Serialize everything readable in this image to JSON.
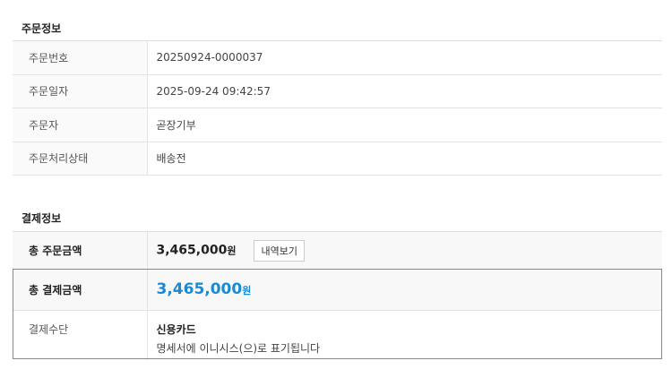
{
  "order_info": {
    "title": "주문정보",
    "rows": [
      {
        "label": "주문번호",
        "value": "20250924-0000037"
      },
      {
        "label": "주문일자",
        "value": "2025-09-24 09:42:57"
      },
      {
        "label": "주문자",
        "value": "곧장기부"
      },
      {
        "label": "주문처리상태",
        "value": "배송전"
      }
    ]
  },
  "payment_info": {
    "title": "결제정보",
    "total_order": {
      "label": "총 주문금액",
      "amount": "3,465,000",
      "unit": "원",
      "button": "내역보기"
    },
    "total_payment": {
      "label": "총 결제금액",
      "amount": "3,465,000",
      "unit": "원"
    },
    "method": {
      "label": "결제수단",
      "value": "신용카드",
      "note": "명세서에 이니시스(으)로 표기됩니다"
    },
    "accent_color": "#1a8ad4"
  }
}
